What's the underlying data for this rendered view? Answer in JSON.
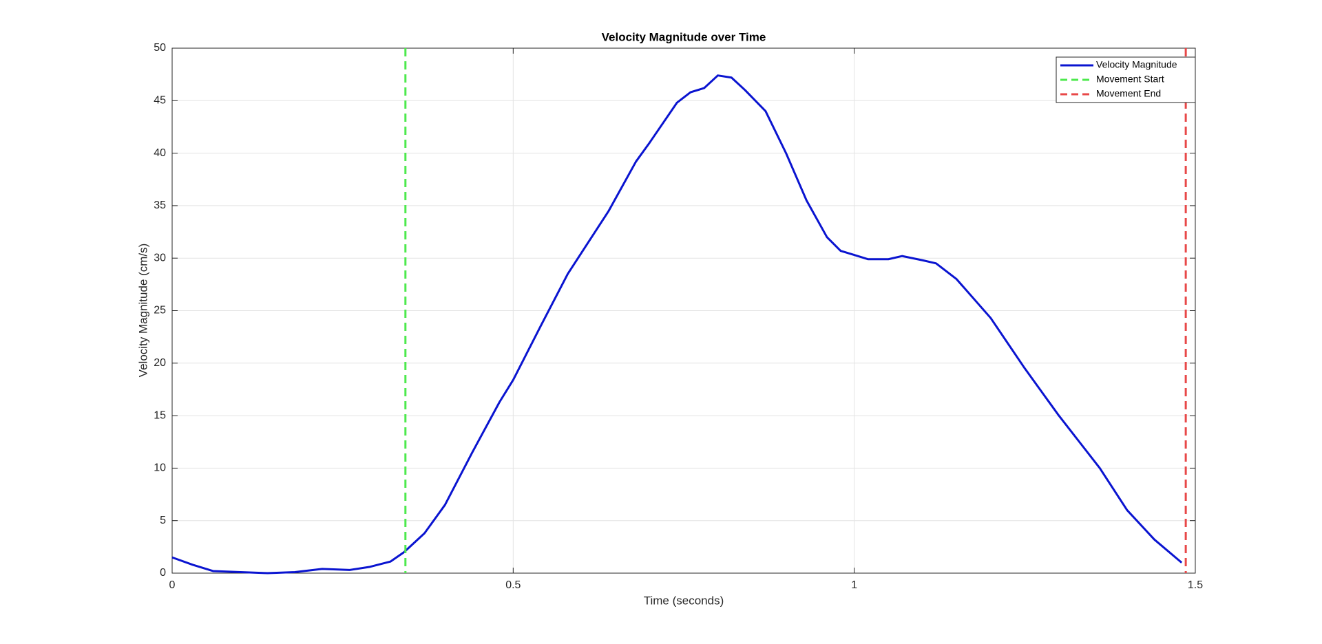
{
  "chart_data": {
    "type": "line",
    "title": "Velocity Magnitude over Time",
    "x_label": "Time (seconds)",
    "y_label": "Velocity Magnitude (cm/s)",
    "x": [
      0,
      0.03,
      0.06,
      0.1,
      0.14,
      0.18,
      0.22,
      0.26,
      0.29,
      0.32,
      0.34,
      0.37,
      0.4,
      0.44,
      0.48,
      0.5,
      0.54,
      0.58,
      0.6,
      0.64,
      0.68,
      0.7,
      0.74,
      0.76,
      0.78,
      0.8,
      0.82,
      0.84,
      0.87,
      0.9,
      0.93,
      0.96,
      0.98,
      1.0,
      1.02,
      1.05,
      1.07,
      1.1,
      1.12,
      1.15,
      1.2,
      1.25,
      1.3,
      1.33,
      1.36,
      1.4,
      1.44,
      1.48
    ],
    "series": [
      {
        "name": "Velocity Magnitude",
        "color": "#0a14d0",
        "values": [
          1.5,
          0.8,
          0.2,
          0.1,
          0.0,
          0.1,
          0.4,
          0.3,
          0.6,
          1.1,
          2.0,
          3.8,
          6.5,
          11.5,
          16.3,
          18.4,
          23.5,
          28.5,
          30.5,
          34.5,
          39.2,
          41,
          44.8,
          45.8,
          46.2,
          47.4,
          47.2,
          46,
          44,
          40,
          35.5,
          32,
          30.7,
          30.3,
          29.9,
          29.9,
          30.2,
          29.8,
          29.5,
          28,
          24.3,
          19.5,
          15,
          12.5,
          10,
          6,
          3.2,
          1.0
        ]
      }
    ],
    "vlines": [
      {
        "name": "Movement Start",
        "color": "#4de94d",
        "x": 0.342
      },
      {
        "name": "Movement End",
        "color": "#e84848",
        "x": 1.486
      }
    ],
    "xlim": [
      0,
      1.5
    ],
    "xticks": [
      0,
      0.5,
      1,
      1.5
    ],
    "ylim": [
      0,
      50
    ],
    "yticks": [
      0,
      5,
      10,
      15,
      20,
      25,
      30,
      35,
      40,
      45,
      50
    ],
    "grid": true,
    "legend": "upper right"
  }
}
